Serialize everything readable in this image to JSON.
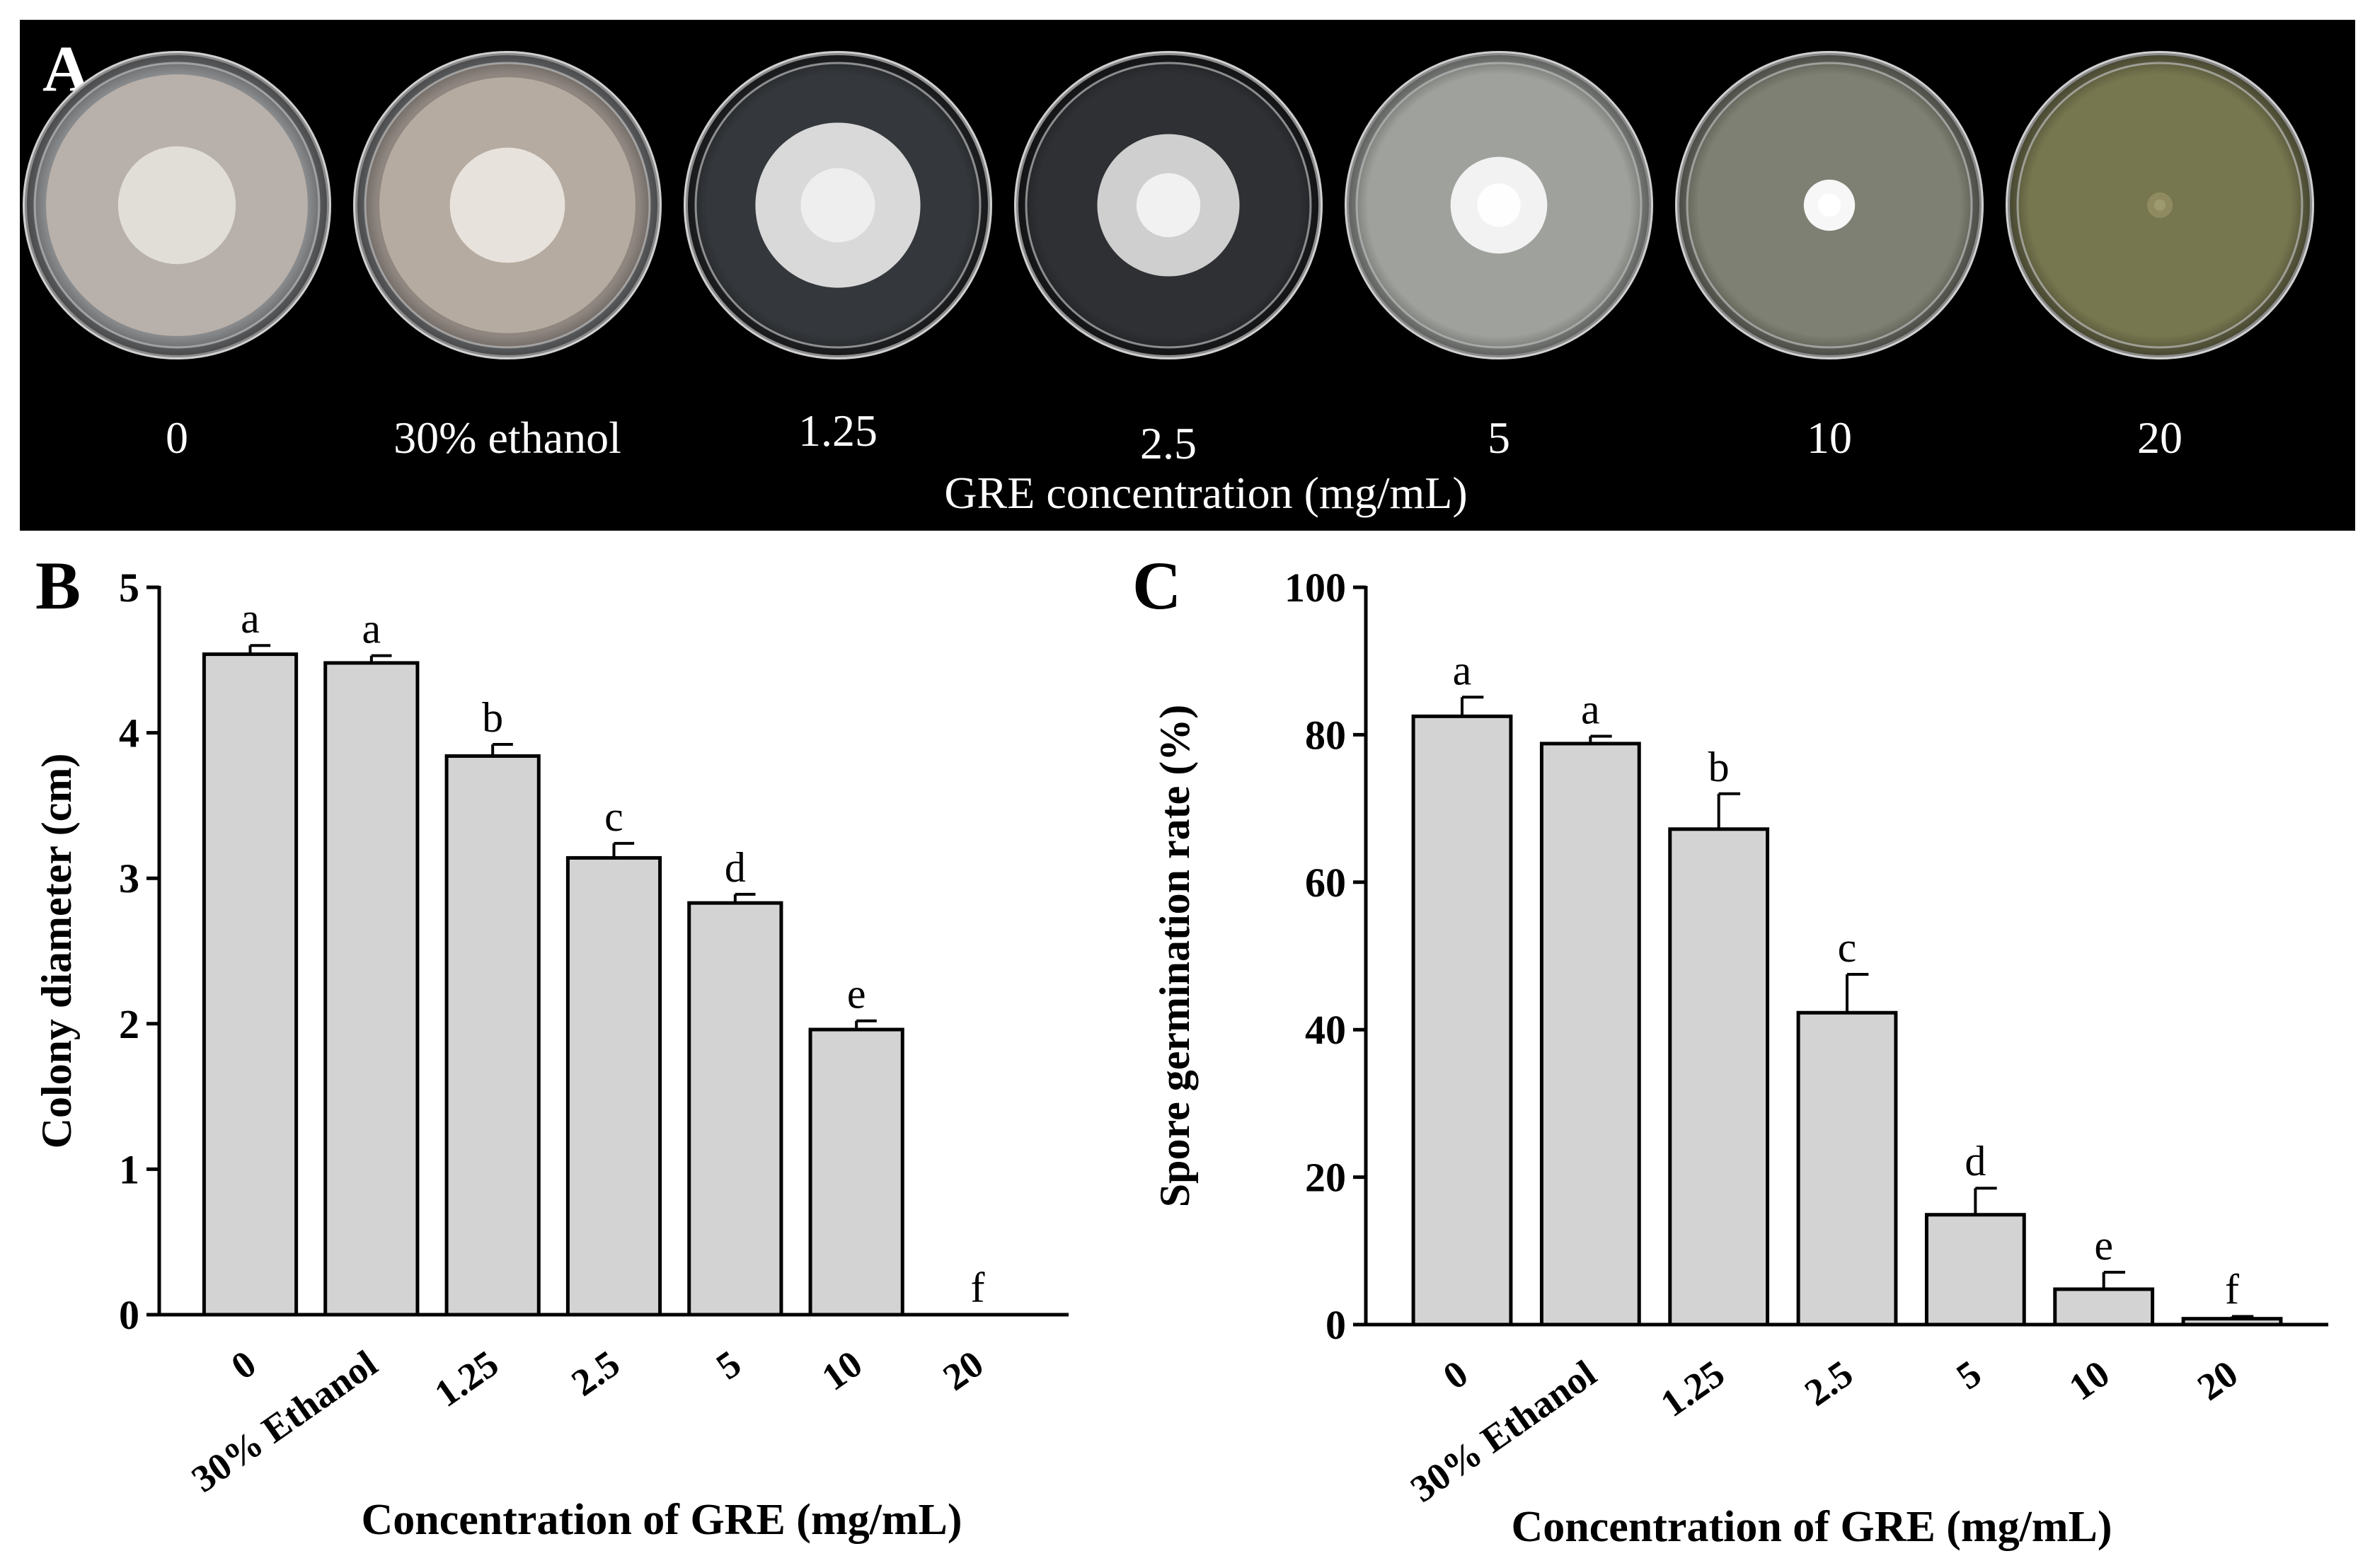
{
  "panel_a": {
    "label": "A",
    "plates": [
      {
        "label": "0",
        "colony": 0.92,
        "bg": "#6d6e70",
        "agar": "#8a8c8e",
        "mycelium": "#b8b0aa",
        "center": "#e6e2dc"
      },
      {
        "label": "30% ethanol",
        "colony": 0.9,
        "bg": "#6d6e70",
        "agar": "#8f8680",
        "mycelium": "#b6aba0",
        "center": "#ece8e2"
      },
      {
        "label": "1.25",
        "colony": 0.58,
        "bg": "#232528",
        "agar": "#34373b",
        "mycelium": "#d9d9d9",
        "center": "#efefef"
      },
      {
        "label": "2.5",
        "colony": 0.5,
        "bg": "#1c1d20",
        "agar": "#2e3034",
        "mycelium": "#cfcfcf",
        "center": "#f4f4f4"
      },
      {
        "label": "5",
        "colony": 0.34,
        "bg": "#8d918d",
        "agar": "#9fa29c",
        "mycelium": "#f2f2f2",
        "center": "#ffffff"
      },
      {
        "label": "10",
        "colony": 0.18,
        "bg": "#6e7167",
        "agar": "#7d8072",
        "mycelium": "#f7f7f7",
        "center": "#ffffff"
      },
      {
        "label": "20",
        "colony": 0.09,
        "bg": "#6b6b4a",
        "agar": "#76764f",
        "mycelium": "#8f8a60",
        "center": "#a09b72"
      }
    ],
    "axis_title": "GRE concentration (mg/mL)"
  },
  "chart_data": [
    {
      "panel": "B",
      "type": "bar",
      "categories": [
        "0",
        "30% Ethanol",
        "1.25",
        "2.5",
        "5",
        "10",
        "20"
      ],
      "values": [
        4.54,
        4.48,
        3.84,
        3.14,
        2.83,
        1.96,
        0
      ],
      "errors": [
        0.06,
        0.05,
        0.08,
        0.1,
        0.06,
        0.06,
        0
      ],
      "significance": [
        "a",
        "a",
        "b",
        "c",
        "d",
        "e",
        "f"
      ],
      "title": "",
      "xlabel": "Concentration of GRE (mg/mL)",
      "ylabel": "Colony diameter (cm)",
      "ylim": [
        0,
        5
      ],
      "yticks": [
        0,
        1,
        2,
        3,
        4,
        5
      ],
      "bar_color": "#d3d3d3",
      "grid": false
    },
    {
      "panel": "C",
      "type": "bar",
      "categories": [
        "0",
        "30% Ethanol",
        "1.25",
        "2.5",
        "5",
        "10",
        "20"
      ],
      "values": [
        82.5,
        78.8,
        67.2,
        42.3,
        14.9,
        4.8,
        0.8
      ],
      "errors": [
        2.6,
        1.0,
        4.8,
        5.2,
        3.6,
        2.3,
        0.3
      ],
      "significance": [
        "a",
        "a",
        "b",
        "c",
        "d",
        "e",
        "f"
      ],
      "title": "",
      "xlabel": "Concentration of GRE (mg/mL)",
      "ylabel": "Spore germination rate (%)",
      "ylim": [
        0,
        100
      ],
      "yticks": [
        0,
        20,
        40,
        60,
        80,
        100
      ],
      "bar_color": "#d3d3d3",
      "grid": false
    }
  ]
}
